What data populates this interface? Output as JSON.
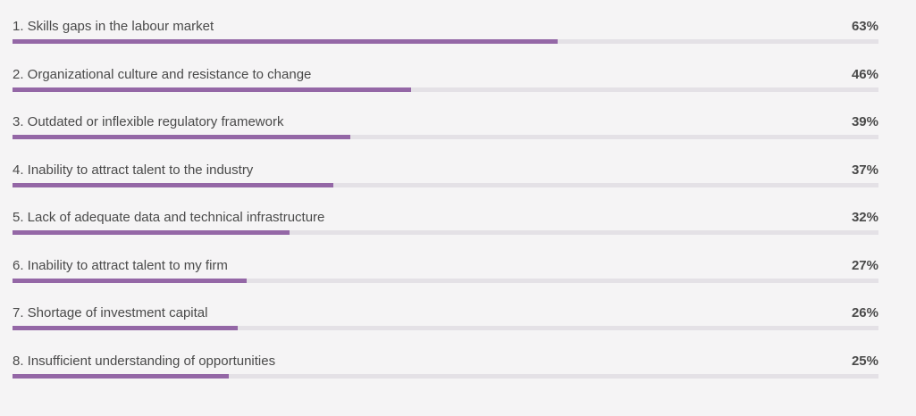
{
  "chart_data": {
    "type": "bar",
    "orientation": "horizontal",
    "xlim": [
      0,
      100
    ],
    "unit": "%",
    "accent_color": "#9467a6",
    "track_color": "#e4e1e6",
    "items": [
      {
        "label": "1.  Skills gaps in the labour market",
        "value": 63,
        "value_label": "63%"
      },
      {
        "label": "2.  Organizational culture and resistance to change",
        "value": 46,
        "value_label": "46%"
      },
      {
        "label": "3.  Outdated or inflexible regulatory framework",
        "value": 39,
        "value_label": "39%"
      },
      {
        "label": "4.  Inability to attract talent to the industry",
        "value": 37,
        "value_label": "37%"
      },
      {
        "label": "5.  Lack of adequate data and technical infrastructure",
        "value": 32,
        "value_label": "32%"
      },
      {
        "label": "6.  Inability to attract talent to my firm",
        "value": 27,
        "value_label": "27%"
      },
      {
        "label": "7.  Shortage of investment capital",
        "value": 26,
        "value_label": "26%"
      },
      {
        "label": "8.  Insufficient understanding of opportunities",
        "value": 25,
        "value_label": "25%"
      }
    ]
  }
}
